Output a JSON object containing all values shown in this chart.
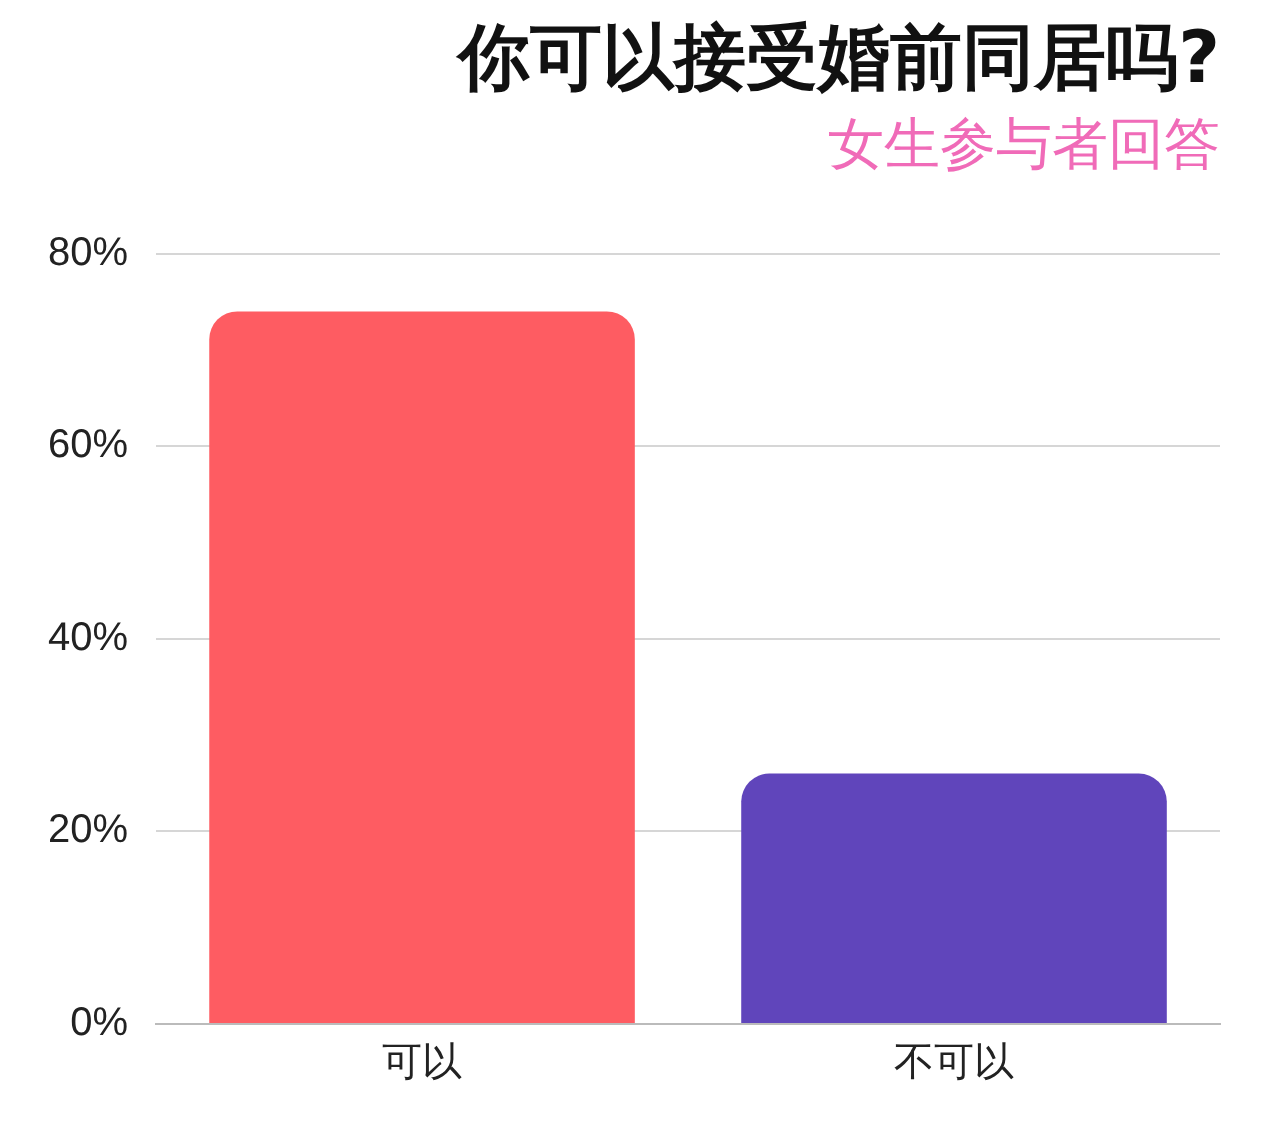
{
  "chart_data": {
    "type": "bar",
    "title": "你可以接受婚前同居吗?",
    "subtitle": "女生参与者回答",
    "categories": [
      "可以",
      "不可以"
    ],
    "values": [
      74,
      26
    ],
    "colors": [
      "#fe5c62",
      "#6045bb"
    ],
    "ylim": [
      0,
      80
    ],
    "yticks": [
      {
        "value": 0,
        "label": "0%"
      },
      {
        "value": 20,
        "label": "20%"
      },
      {
        "value": 40,
        "label": "40%"
      },
      {
        "value": 60,
        "label": "60%"
      },
      {
        "value": 80,
        "label": "80%"
      }
    ],
    "grid": "y",
    "legend": false
  }
}
